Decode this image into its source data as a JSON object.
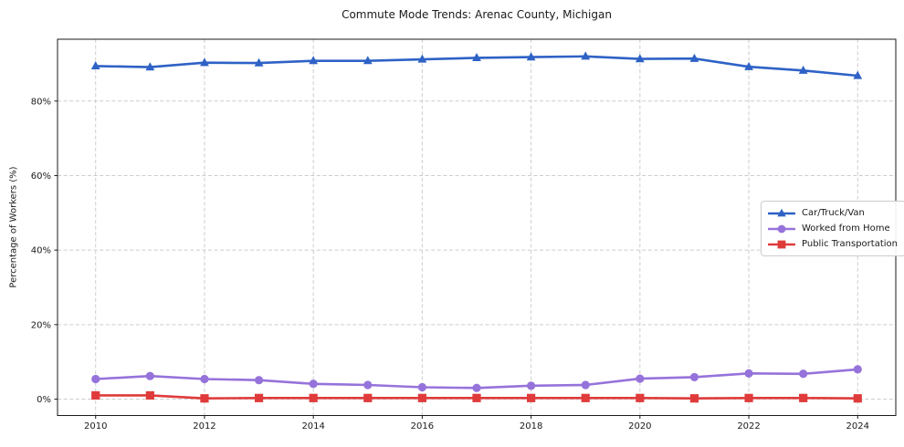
{
  "figure": {
    "title": "Commute Mode Trends: Arenac County, Michigan",
    "y_axis_label": "Percentage of Workers (%)"
  },
  "chart_data": {
    "type": "line",
    "title": "Commute Mode Trends: Arenac County, Michigan",
    "xlabel": "",
    "ylabel": "Percentage of Workers (%)",
    "x": [
      2010,
      2011,
      2012,
      2013,
      2014,
      2015,
      2016,
      2017,
      2018,
      2019,
      2020,
      2021,
      2022,
      2023,
      2024
    ],
    "series": [
      {
        "name": "Car/Truck/Van",
        "color": "#2e62c6",
        "marker": "triangle",
        "values": [
          89.4,
          89.1,
          90.3,
          90.2,
          90.8,
          90.8,
          91.2,
          91.6,
          91.8,
          92.0,
          91.3,
          91.4,
          89.2,
          88.2,
          86.8
        ]
      },
      {
        "name": "Worked from Home",
        "color": "#9673db",
        "marker": "circle",
        "values": [
          5.4,
          6.2,
          5.4,
          5.1,
          4.1,
          3.8,
          3.2,
          3.0,
          3.6,
          3.8,
          5.5,
          5.9,
          6.9,
          6.8,
          8.0
        ]
      },
      {
        "name": "Public Transportation",
        "color": "#e03b3b",
        "marker": "square",
        "values": [
          1.0,
          1.0,
          0.2,
          0.3,
          0.3,
          0.3,
          0.3,
          0.3,
          0.3,
          0.3,
          0.3,
          0.2,
          0.3,
          0.3,
          0.2
        ]
      }
    ],
    "x_tick_values": [
      2010,
      2012,
      2014,
      2016,
      2018,
      2020,
      2022,
      2024
    ],
    "x_tick_labels": [
      "2010",
      "2012",
      "2014",
      "2016",
      "2018",
      "2020",
      "2022",
      "2024"
    ],
    "y_tick_values": [
      0,
      20,
      40,
      60,
      80
    ],
    "y_tick_labels": [
      "0%",
      "20%",
      "40%",
      "60%",
      "80%"
    ],
    "xlim": [
      2009.3,
      2024.7
    ],
    "ylim": [
      -4.4,
      96.6
    ],
    "grid": true,
    "grid_style": "dashed",
    "legend_position": "center-right",
    "legend_entries": [
      "Car/Truck/Van",
      "Worked from Home",
      "Public Transportation"
    ],
    "colors": {
      "grid": "#cccccc",
      "axis": "#1a1a1a",
      "background": "#ffffff"
    }
  }
}
